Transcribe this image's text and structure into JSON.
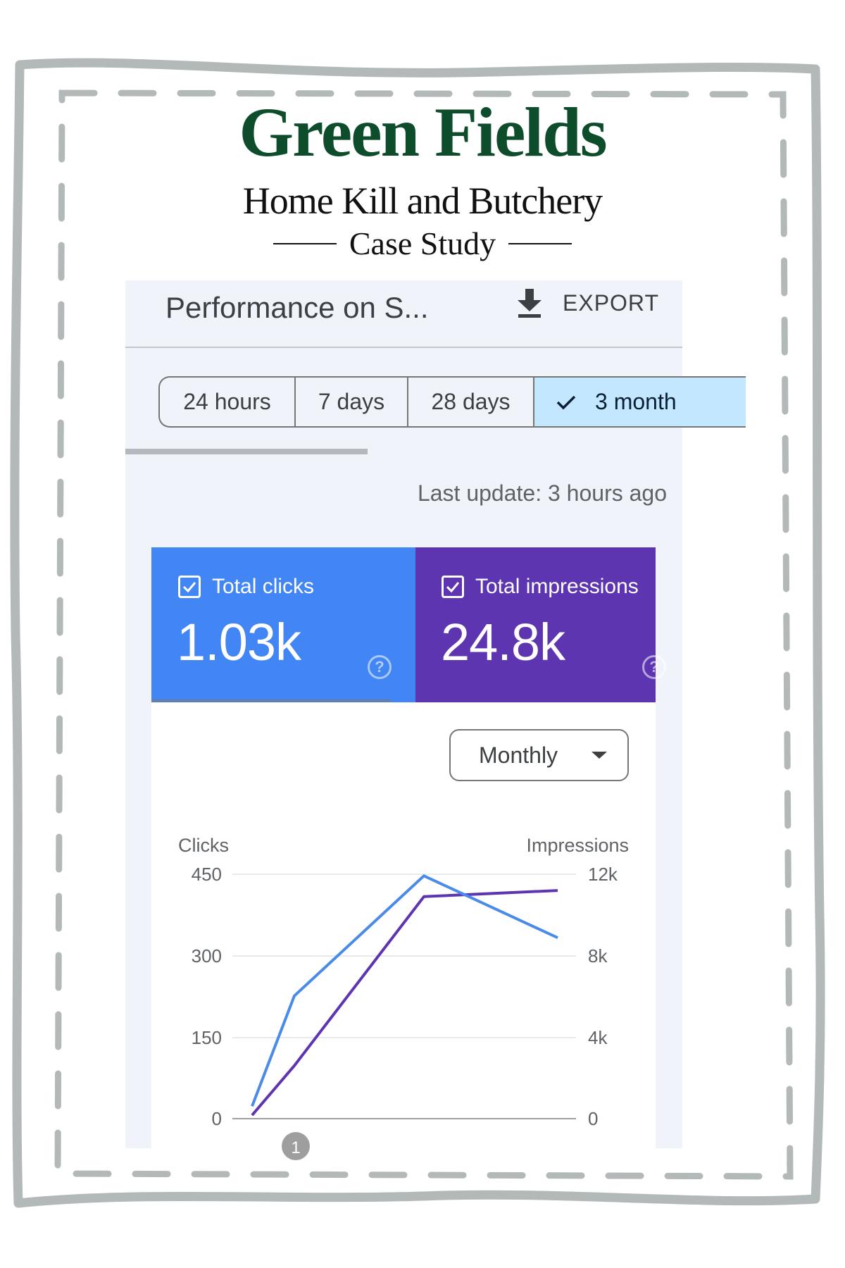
{
  "brand": {
    "title": "Green Fields",
    "subtitle": "Home Kill and Butchery",
    "tagline": "Case Study",
    "title_color": "#0d4d2c"
  },
  "header": {
    "title": "Performance on S...",
    "export_icon": "download-icon",
    "export_label": "EXPORT"
  },
  "date_range": {
    "options": [
      {
        "label": "24 hours",
        "selected": false
      },
      {
        "label": "7 days",
        "selected": false
      },
      {
        "label": "28 days",
        "selected": false
      },
      {
        "label": "3 month",
        "selected": true
      }
    ],
    "selected_icon": "check-icon",
    "selected_color": "#c2e7ff"
  },
  "last_update": "Last update: 3 hours ago",
  "metrics": {
    "clicks": {
      "label": "Total clicks",
      "value": "1.03k",
      "checked": true,
      "color": "#4285f4",
      "help_icon": "help-icon"
    },
    "impressions": {
      "label": "Total impressions",
      "value": "24.8k",
      "checked": true,
      "color": "#5e35b1",
      "help_icon": "help-icon"
    }
  },
  "granularity": {
    "selected": "Monthly",
    "icon": "caret-down-icon"
  },
  "chart": {
    "left_axis_title": "Clicks",
    "right_axis_title": "Impressions",
    "left_ticks": [
      "450",
      "300",
      "150",
      "0"
    ],
    "right_ticks": [
      "12k",
      "8k",
      "4k",
      "0"
    ],
    "annotation_marker": "1"
  },
  "chart_data": {
    "type": "line",
    "title": "",
    "xlabel": "",
    "ylabel": "Clicks",
    "ylabel_right": "Impressions",
    "x": [
      1,
      2,
      3,
      4
    ],
    "ylim": [
      0,
      450
    ],
    "ylim_right": [
      0,
      12000
    ],
    "yticks": [
      0,
      150,
      300,
      450
    ],
    "yticks_right": [
      "0",
      "4k",
      "8k",
      "12k"
    ],
    "grid": true,
    "legend": "none (metric tiles act as legend)",
    "series": [
      {
        "name": "Clicks",
        "axis": "left",
        "color": "#4285f4",
        "values": [
          23,
          226,
          447,
          333
        ]
      },
      {
        "name": "Impressions",
        "axis": "right",
        "color": "#5e35b1",
        "values": [
          170,
          2600,
          10900,
          11200
        ]
      }
    ],
    "annotations": [
      {
        "x": 2,
        "label": "1"
      }
    ]
  }
}
